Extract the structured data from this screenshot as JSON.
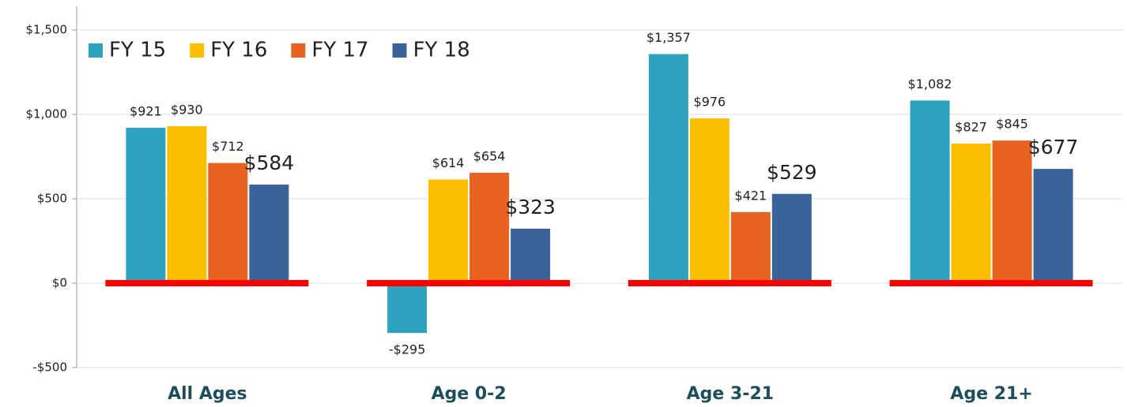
{
  "chart_data": {
    "type": "bar",
    "categories": [
      "All Ages",
      "Age 0-2",
      "Age 3-21",
      "Age 21+"
    ],
    "series": [
      {
        "name": "FY 15",
        "color": "#2ea3c0",
        "values": [
          921,
          -295,
          1357,
          1082
        ],
        "value_labels": [
          "$921",
          "-$295",
          "$1,357",
          "$1,082"
        ]
      },
      {
        "name": "FY 16",
        "color": "#fbbf00",
        "values": [
          930,
          614,
          976,
          827
        ],
        "value_labels": [
          "$930",
          "$614",
          "$976",
          "$827"
        ]
      },
      {
        "name": "FY 17",
        "color": "#e8631f",
        "values": [
          712,
          654,
          421,
          845
        ],
        "value_labels": [
          "$712",
          "$654",
          "$421",
          "$845"
        ]
      },
      {
        "name": "FY 18",
        "color": "#3a6399",
        "values": [
          584,
          323,
          529,
          677
        ],
        "value_labels": [
          "$584",
          "$323",
          "$529",
          "$677"
        ]
      }
    ],
    "ylim": [
      -500,
      1500
    ],
    "yticks": [
      {
        "value": -500,
        "label": "-$500"
      },
      {
        "value": 0,
        "label": "$0"
      },
      {
        "value": 500,
        "label": "$500"
      },
      {
        "value": 1000,
        "label": "$1,000"
      },
      {
        "value": 1500,
        "label": "$1,500"
      }
    ],
    "grid": true,
    "legend": "top-left"
  }
}
